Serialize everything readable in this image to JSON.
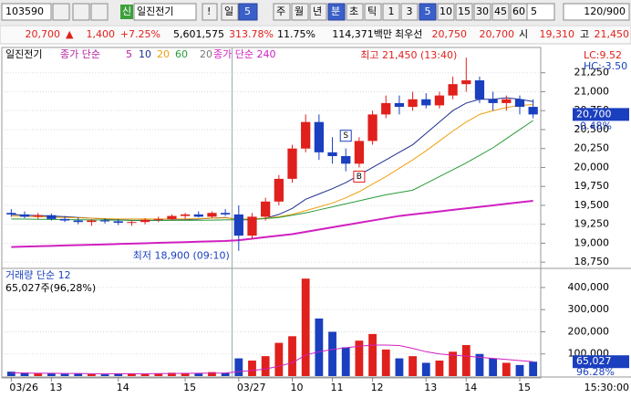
{
  "toolbar": {
    "code": "103590",
    "badge": "신",
    "name": "일진전기",
    "alert": "!",
    "period": "일",
    "period_n": "5",
    "week": "주",
    "month": "월",
    "year": "년",
    "minute": "분",
    "second": "초",
    "tick": "틱",
    "steps": [
      "1",
      "3",
      "5",
      "10",
      "15",
      "30",
      "45",
      "60"
    ],
    "count": "5",
    "range": "120/900"
  },
  "quote": {
    "price": "20,700",
    "change": "1,400",
    "change_pct": "+7.25%",
    "volume": "5,601,575",
    "vol_ratio": "313.78%",
    "turnover": "11.75%",
    "amount": "114,371백만",
    "best_label": "최우선",
    "ask": "20,750",
    "bid": "20,700",
    "open_label": "시",
    "open": "19,310",
    "high_label": "고",
    "high": "21,450"
  },
  "chart_data": [
    {
      "type": "candlestick",
      "title": "일진전기",
      "legend": [
        "종가 단순",
        "5",
        "10",
        "20",
        "60"
      ],
      "legend2": "종가 단순 240",
      "cursor_label": "20",
      "lc": "LC:9.52",
      "hc": "HC:-3.50",
      "last_label": "20,700",
      "last_pct": "-0.48%",
      "annotations": [
        "최고 21,450 (13:40)",
        "최저 18,900 (09:10)",
        "S",
        "B"
      ],
      "categories": [
        "03/26",
        null,
        null,
        "13",
        null,
        null,
        null,
        null,
        "14",
        null,
        null,
        null,
        null,
        "15",
        null,
        null,
        null,
        "03/27",
        null,
        null,
        null,
        "10",
        null,
        null,
        "11",
        null,
        null,
        "12",
        null,
        null,
        null,
        "13",
        null,
        null,
        "14",
        null,
        null,
        null,
        "15",
        null
      ],
      "end_time": "15:30:00",
      "open": [
        19400,
        19380,
        19350,
        19370,
        19320,
        19300,
        19280,
        19300,
        19290,
        19270,
        19280,
        19310,
        19320,
        19360,
        19380,
        19350,
        19400,
        19380,
        19100,
        19350,
        19550,
        19850,
        20250,
        20600,
        20200,
        20150,
        20050,
        20350,
        20700,
        20850,
        20800,
        20900,
        20820,
        20950,
        21100,
        21150,
        20900,
        20850,
        20900,
        20800
      ],
      "high": [
        19450,
        19420,
        19400,
        19390,
        19360,
        19340,
        19320,
        19330,
        19320,
        19300,
        19330,
        19350,
        19380,
        19400,
        19420,
        19420,
        19450,
        19500,
        19400,
        19600,
        19900,
        20300,
        20700,
        20700,
        20400,
        20250,
        20400,
        20750,
        20950,
        20950,
        21000,
        20980,
        21000,
        21200,
        21450,
        21200,
        21000,
        20950,
        20950,
        20900
      ],
      "low": [
        19350,
        19330,
        19320,
        19300,
        19280,
        19250,
        19230,
        19260,
        19240,
        19230,
        19250,
        19280,
        19300,
        19320,
        19340,
        19330,
        19360,
        18900,
        19050,
        19300,
        19500,
        19800,
        20200,
        20100,
        20050,
        19950,
        20000,
        20300,
        20650,
        20700,
        20750,
        20780,
        20780,
        20900,
        21000,
        20850,
        20750,
        20750,
        20700,
        20650
      ],
      "close": [
        19380,
        19350,
        19370,
        19320,
        19300,
        19280,
        19300,
        19290,
        19270,
        19280,
        19310,
        19320,
        19360,
        19380,
        19350,
        19400,
        19380,
        19100,
        19350,
        19550,
        19850,
        20250,
        20600,
        20200,
        20150,
        20050,
        20350,
        20700,
        20850,
        20800,
        20900,
        20820,
        20950,
        21100,
        21150,
        20900,
        20850,
        20900,
        20800,
        20700
      ],
      "up_color": "#e0201c",
      "down_color": "#1a3fbf",
      "series": [
        {
          "name": "10",
          "color": "#1f2f8f",
          "values": [
            19380,
            19370,
            19365,
            19360,
            19350,
            19340,
            19330,
            19320,
            19310,
            19300,
            19300,
            19300,
            19305,
            19310,
            19320,
            19330,
            19340,
            19310,
            19310,
            19330,
            19380,
            19460,
            19580,
            19650,
            19720,
            19800,
            19900,
            20000,
            20100,
            20200,
            20300,
            20450,
            20600,
            20750,
            20850,
            20900,
            20900,
            20920,
            20900,
            20870
          ]
        },
        {
          "name": "20",
          "color": "#f0a010",
          "values": [
            19360,
            19355,
            19350,
            19345,
            19340,
            19335,
            19330,
            19325,
            19320,
            19320,
            19320,
            19320,
            19320,
            19320,
            19325,
            19330,
            19335,
            19320,
            19320,
            19330,
            19350,
            19380,
            19430,
            19480,
            19530,
            19600,
            19680,
            19780,
            19880,
            19990,
            20100,
            20220,
            20350,
            20480,
            20600,
            20700,
            20750,
            20790,
            20820,
            20830
          ]
        },
        {
          "name": "60",
          "color": "#2a9a3a",
          "values": [
            19320,
            19318,
            19316,
            19314,
            19312,
            19310,
            19308,
            19306,
            19305,
            19304,
            19303,
            19302,
            19302,
            19302,
            19303,
            19305,
            19308,
            19310,
            19315,
            19325,
            19340,
            19370,
            19400,
            19440,
            19480,
            19520,
            19560,
            19600,
            19640,
            19670,
            19700,
            19790,
            19880,
            19970,
            20060,
            20160,
            20260,
            20380,
            20500,
            20620
          ]
        },
        {
          "name": "240",
          "color": "#d020c0",
          "values": [
            18950,
            18955,
            18960,
            18965,
            18970,
            18975,
            18980,
            18985,
            18990,
            18995,
            19000,
            19005,
            19010,
            19015,
            19020,
            19025,
            19030,
            19040,
            19060,
            19080,
            19100,
            19120,
            19150,
            19180,
            19210,
            19240,
            19270,
            19300,
            19330,
            19360,
            19380,
            19400,
            19420,
            19440,
            19460,
            19480,
            19500,
            19520,
            19540,
            19560
          ]
        }
      ],
      "ylim": [
        18680,
        21560
      ],
      "yticks": [
        {
          "value": 18750,
          "label": "18,750"
        },
        {
          "value": 19000,
          "label": "19,000"
        },
        {
          "value": 19250,
          "label": "19,250"
        },
        {
          "value": 19500,
          "label": "19,500"
        },
        {
          "value": 19750,
          "label": "19,750"
        },
        {
          "value": 20000,
          "label": "20,000"
        },
        {
          "value": 20250,
          "label": "20,250"
        },
        {
          "value": 20500,
          "label": "20,500"
        },
        {
          "value": 20750,
          "label": "20,750"
        },
        {
          "value": 21000,
          "label": "21,000"
        },
        {
          "value": 21250,
          "label": "21,250"
        }
      ],
      "grid": true
    },
    {
      "type": "bar",
      "title": "거래량 단순 12",
      "subtitle": "65,027주(96,28%)",
      "last_label": "65,027",
      "last_pct": "96.28%",
      "values": [
        20000,
        15000,
        12000,
        14000,
        10000,
        12000,
        9000,
        8000,
        10000,
        11000,
        9000,
        12000,
        15000,
        14000,
        13000,
        18000,
        15000,
        80000,
        70000,
        90000,
        150000,
        180000,
        440000,
        260000,
        200000,
        130000,
        160000,
        190000,
        120000,
        80000,
        90000,
        60000,
        70000,
        110000,
        140000,
        100000,
        80000,
        60000,
        50000,
        65027
      ],
      "series": [
        {
          "name": "12",
          "color": "#d020c0",
          "values": [
            15000,
            14000,
            13000,
            13000,
            12000,
            12000,
            11000,
            11000,
            11000,
            11000,
            11000,
            11500,
            12000,
            12500,
            13000,
            13500,
            14000,
            20000,
            25000,
            32000,
            45000,
            60000,
            95000,
            110000,
            120000,
            128000,
            135000,
            140000,
            140000,
            138000,
            125000,
            110000,
            100000,
            95000,
            90000,
            85000,
            80000,
            75000,
            70000,
            65000
          ]
        }
      ],
      "ylim": [
        0,
        478000
      ],
      "yticks": [
        {
          "value": 100000,
          "label": "100,000"
        },
        {
          "value": 200000,
          "label": "200,000"
        },
        {
          "value": 300000,
          "label": "300,000"
        },
        {
          "value": 400000,
          "label": "400,000"
        }
      ],
      "grid": true
    }
  ]
}
